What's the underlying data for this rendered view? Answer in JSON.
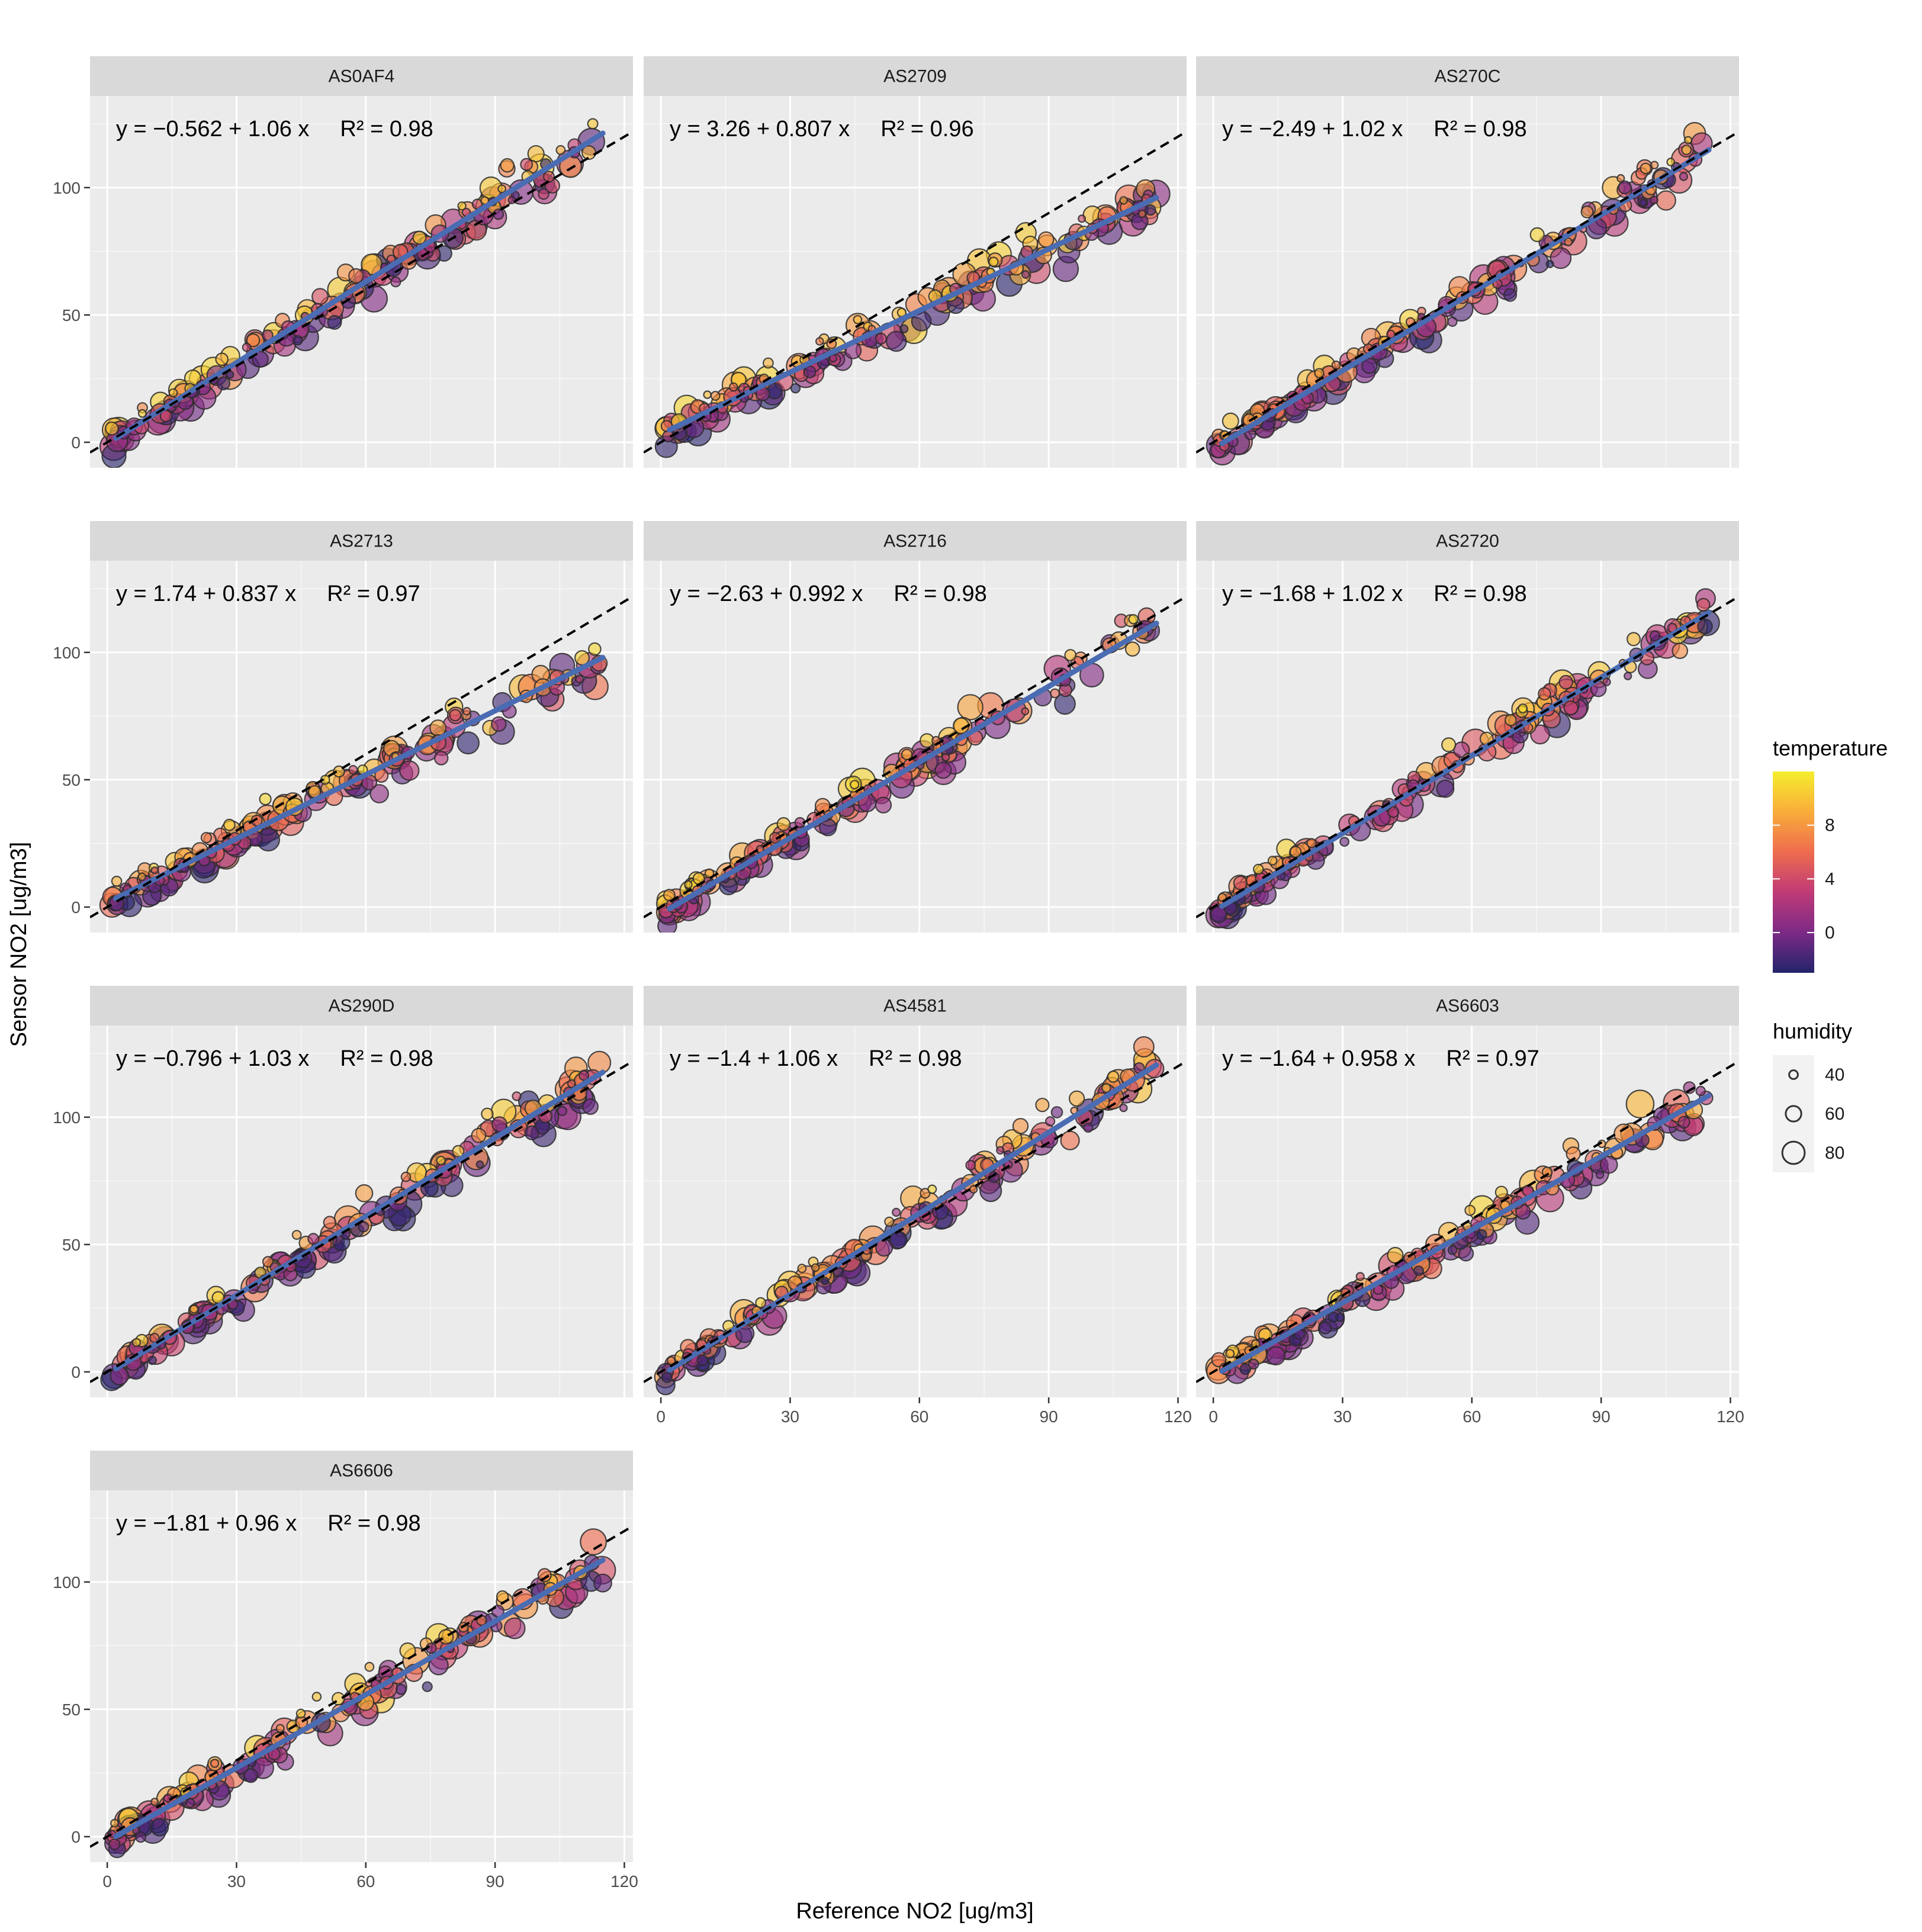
{
  "chart_data": {
    "type": "scatter",
    "layout": "faceted 4 rows x 3 columns",
    "xlabel": "Reference NO2 [ug/m3]",
    "ylabel": "Sensor NO2 [ug/m3]",
    "xlim": [
      -4,
      122
    ],
    "ylim": [
      -10,
      136
    ],
    "x_ticks": [
      0,
      30,
      60,
      90,
      120
    ],
    "y_ticks": [
      0,
      50,
      100
    ],
    "reference_line": {
      "intercept": 0,
      "slope": 1,
      "style": "dashed"
    },
    "fit_line_color": "#4a6cb3",
    "panel_background": "#ebebeb",
    "strip_background": "#d9d9d9",
    "facets": [
      {
        "id": "AS0AF4",
        "intercept": -0.562,
        "slope": 1.06,
        "r2": 0.98,
        "eq_y": "y = −0.562 + 1.06 x",
        "eq_r2": "R² = 0.98"
      },
      {
        "id": "AS2709",
        "intercept": 3.26,
        "slope": 0.807,
        "r2": 0.96,
        "eq_y": "y = 3.26 + 0.807 x",
        "eq_r2": "R² = 0.96"
      },
      {
        "id": "AS270C",
        "intercept": -2.49,
        "slope": 1.02,
        "r2": 0.98,
        "eq_y": "y = −2.49 + 1.02 x",
        "eq_r2": "R² = 0.98"
      },
      {
        "id": "AS2713",
        "intercept": 1.74,
        "slope": 0.837,
        "r2": 0.97,
        "eq_y": "y = 1.74 + 0.837 x",
        "eq_r2": "R² = 0.97"
      },
      {
        "id": "AS2716",
        "intercept": -2.63,
        "slope": 0.992,
        "r2": 0.98,
        "eq_y": "y = −2.63 + 0.992 x",
        "eq_r2": "R² = 0.98"
      },
      {
        "id": "AS2720",
        "intercept": -1.68,
        "slope": 1.02,
        "r2": 0.98,
        "eq_y": "y = −1.68 + 1.02 x",
        "eq_r2": "R² = 0.98"
      },
      {
        "id": "AS290D",
        "intercept": -0.796,
        "slope": 1.03,
        "r2": 0.98,
        "eq_y": "y = −0.796 + 1.03 x",
        "eq_r2": "R² = 0.98"
      },
      {
        "id": "AS4581",
        "intercept": -1.4,
        "slope": 1.06,
        "r2": 0.98,
        "eq_y": "y = −1.4 + 1.06 x",
        "eq_r2": "R² = 0.98"
      },
      {
        "id": "AS6603",
        "intercept": -1.64,
        "slope": 0.958,
        "r2": 0.97,
        "eq_y": "y = −1.64 + 0.958 x",
        "eq_r2": "R² = 0.97"
      },
      {
        "id": "AS6606",
        "intercept": -1.81,
        "slope": 0.96,
        "r2": 0.98,
        "eq_y": "y = −1.81 + 0.96 x",
        "eq_r2": "R² = 0.98"
      }
    ],
    "legend": {
      "temperature": {
        "title": "temperature",
        "ticks": [
          0,
          4,
          8
        ],
        "range": [
          -3,
          12
        ],
        "colors": [
          "#23246b",
          "#7c2a86",
          "#c03a76",
          "#ee6c4e",
          "#f9ad3b",
          "#f5ee2d"
        ]
      },
      "humidity": {
        "title": "humidity",
        "values": [
          40,
          60,
          80
        ]
      }
    }
  }
}
